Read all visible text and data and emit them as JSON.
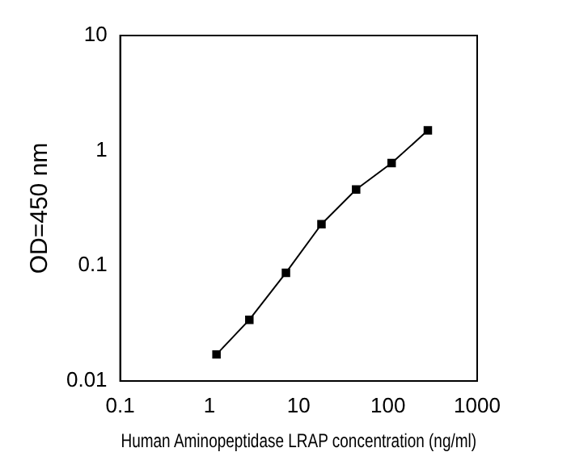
{
  "chart_data": {
    "type": "line",
    "xlabel": "Human Aminopeptidase LRAP concentration (ng/ml)",
    "ylabel": "OD=450 nm",
    "x": [
      1.2,
      2.8,
      7.2,
      18,
      44,
      110,
      280
    ],
    "series": [
      {
        "color": "#000000",
        "values": [
          0.017,
          0.034,
          0.087,
          0.23,
          0.46,
          0.78,
          1.5
        ]
      }
    ],
    "xlim": [
      0.1,
      1000
    ],
    "xticks": [
      0.1,
      1,
      10,
      100,
      1000
    ],
    "ylim": [
      0.01,
      10
    ],
    "yticks": [
      0.01,
      0.1,
      1,
      10
    ],
    "log": "xy",
    "grid": false,
    "legend": false,
    "marker": "square",
    "line_style": "solid"
  }
}
